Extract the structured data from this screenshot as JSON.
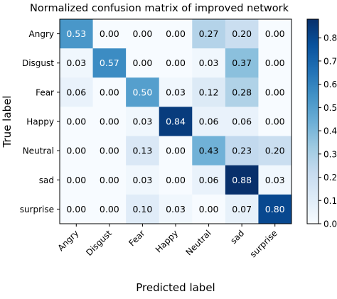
{
  "chart_data": {
    "type": "heatmap",
    "title": "Normalized confusion matrix of improved network",
    "xlabel": "Predicted label",
    "ylabel": "True label",
    "x_categories": [
      "Angry",
      "Disgust",
      "Fear",
      "Happy",
      "Neutral",
      "sad",
      "surprise"
    ],
    "y_categories": [
      "Angry",
      "Disgust",
      "Fear",
      "Happy",
      "Neutral",
      "sad",
      "surprise"
    ],
    "values": [
      [
        0.53,
        0.0,
        0.0,
        0.0,
        0.27,
        0.2,
        0.0
      ],
      [
        0.03,
        0.57,
        0.0,
        0.0,
        0.03,
        0.37,
        0.0
      ],
      [
        0.06,
        0.0,
        0.5,
        0.03,
        0.12,
        0.28,
        0.0
      ],
      [
        0.0,
        0.0,
        0.03,
        0.84,
        0.06,
        0.06,
        0.0
      ],
      [
        0.0,
        0.0,
        0.13,
        0.0,
        0.43,
        0.23,
        0.2
      ],
      [
        0.0,
        0.0,
        0.03,
        0.0,
        0.06,
        0.88,
        0.03
      ],
      [
        0.0,
        0.0,
        0.1,
        0.03,
        0.0,
        0.07,
        0.8
      ]
    ],
    "colorbar": {
      "colormap": "Blues",
      "vmin": 0.0,
      "vmax": 0.88,
      "ticks": [
        "0.0",
        "0.1",
        "0.2",
        "0.3",
        "0.4",
        "0.5",
        "0.6",
        "0.7",
        "0.8"
      ]
    },
    "grid": false,
    "colors": {
      "low": "#f7fbff",
      "high": "#08306b",
      "light_text": "#ffffff",
      "dark_text": "#000000"
    }
  }
}
